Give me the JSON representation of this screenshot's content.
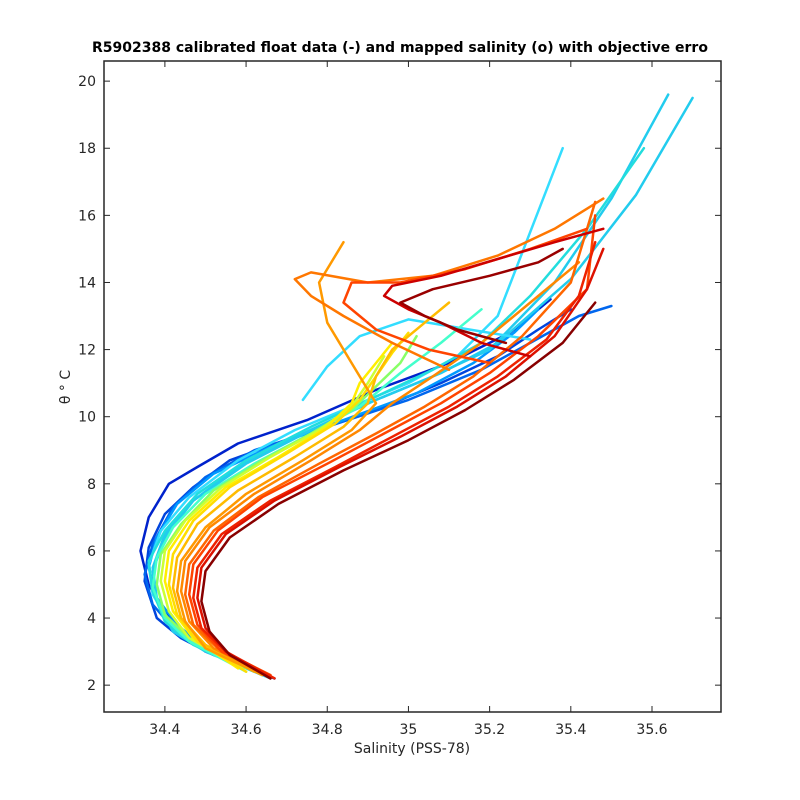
{
  "chart_data": {
    "type": "line",
    "title": "R5902388 calibrated float data (-) and mapped salinity (o) with objective erro",
    "xlabel": "Salinity (PSS-78)",
    "ylabel": "θ ° C",
    "xlim": [
      34.25,
      35.77
    ],
    "ylim": [
      1.2,
      20.6
    ],
    "x_ticks": [
      34.4,
      34.6,
      34.8,
      35.0,
      35.2,
      35.4,
      35.6
    ],
    "x_tick_labels": [
      "34.4",
      "34.6",
      "34.8",
      "35",
      "35.2",
      "35.4",
      "35.6"
    ],
    "y_ticks": [
      2,
      4,
      6,
      8,
      10,
      12,
      14,
      16,
      18,
      20
    ],
    "y_tick_labels": [
      "2",
      "4",
      "6",
      "8",
      "10",
      "12",
      "14",
      "16",
      "18",
      "20"
    ],
    "grid": false,
    "legend": "none",
    "series": [
      {
        "color": "#0022cc",
        "x": [
          34.67,
          34.5,
          34.45,
          34.4,
          34.36,
          34.34,
          34.36,
          34.41,
          34.48,
          34.58,
          34.75,
          34.92,
          35.1,
          35.25,
          35.35
        ],
        "y": [
          2.2,
          3.0,
          3.5,
          4.2,
          5.0,
          6.0,
          7.0,
          8.0,
          8.5,
          9.2,
          9.9,
          10.8,
          11.6,
          12.5,
          13.5
        ]
      },
      {
        "color": "#0044dd",
        "x": [
          34.66,
          34.52,
          34.44,
          34.38,
          34.35,
          34.36,
          34.4,
          34.47,
          34.56,
          34.72,
          34.9,
          35.08,
          35.22,
          35.32,
          35.4
        ],
        "y": [
          2.25,
          2.9,
          3.4,
          4.0,
          5.1,
          6.1,
          7.1,
          7.9,
          8.7,
          9.4,
          10.1,
          11.0,
          11.8,
          12.6,
          13.2
        ]
      },
      {
        "color": "#0066ee",
        "x": [
          34.65,
          34.48,
          34.42,
          34.37,
          34.35,
          34.37,
          34.42,
          34.5,
          34.62,
          34.8,
          35.0,
          35.18,
          35.3,
          35.42,
          35.5
        ],
        "y": [
          2.3,
          3.2,
          3.7,
          4.4,
          5.3,
          6.2,
          7.3,
          8.2,
          9.0,
          9.7,
          10.5,
          11.4,
          12.2,
          13.0,
          13.3
        ]
      },
      {
        "color": "#0099ff",
        "x": [
          34.64,
          34.5,
          34.43,
          34.38,
          34.36,
          34.38,
          34.43,
          34.52,
          34.66,
          34.84,
          35.02,
          35.16,
          35.26,
          35.32
        ],
        "y": [
          2.3,
          3.1,
          3.8,
          4.6,
          5.5,
          6.4,
          7.4,
          8.3,
          9.1,
          9.9,
          10.7,
          11.6,
          12.5,
          13.2
        ]
      },
      {
        "color": "#22ccee",
        "x": [
          34.66,
          34.5,
          34.42,
          34.38,
          34.37,
          34.4,
          34.47,
          34.58,
          34.74,
          34.9,
          35.06,
          35.2,
          35.36,
          35.5,
          35.64
        ],
        "y": [
          2.2,
          3.0,
          3.6,
          4.5,
          5.4,
          6.4,
          7.5,
          8.5,
          9.5,
          10.4,
          11.2,
          12.0,
          14.0,
          16.5,
          19.6
        ]
      },
      {
        "color": "#22ccee",
        "x": [
          34.65,
          34.5,
          34.42,
          34.38,
          34.37,
          34.4,
          34.47,
          34.6,
          34.76,
          34.92,
          35.08,
          35.22,
          35.4,
          35.56,
          35.7
        ],
        "y": [
          2.3,
          3.1,
          3.7,
          4.6,
          5.5,
          6.5,
          7.5,
          8.6,
          9.6,
          10.5,
          11.3,
          12.2,
          14.1,
          16.6,
          19.5
        ]
      },
      {
        "color": "#33ddff",
        "x": [
          34.63,
          34.48,
          34.41,
          34.37,
          34.36,
          34.39,
          34.46,
          34.58,
          34.72,
          34.86,
          35.0,
          35.12,
          35.22,
          35.3,
          35.38
        ],
        "y": [
          2.4,
          3.2,
          3.9,
          4.7,
          5.6,
          6.6,
          7.6,
          8.7,
          9.6,
          10.3,
          11.0,
          11.8,
          13.0,
          15.5,
          18.0
        ]
      },
      {
        "color": "#33ddff",
        "x": [
          35.3,
          35.15,
          35.0,
          34.88,
          34.8,
          34.74
        ],
        "y": [
          12.3,
          12.6,
          12.9,
          12.4,
          11.5,
          10.5
        ]
      },
      {
        "color": "#22dddd",
        "x": [
          34.62,
          34.47,
          34.4,
          34.37,
          34.36,
          34.4,
          34.48,
          34.6,
          34.76,
          34.92,
          35.06,
          35.18,
          35.3,
          35.44,
          35.58
        ],
        "y": [
          2.4,
          3.2,
          3.9,
          4.8,
          5.7,
          6.6,
          7.7,
          8.7,
          9.7,
          10.6,
          11.4,
          12.2,
          13.6,
          15.6,
          18.0
        ]
      },
      {
        "color": "#44ffcc",
        "x": [
          34.6,
          34.46,
          34.4,
          34.37,
          34.38,
          34.42,
          34.5,
          34.62,
          34.76,
          34.88,
          34.98,
          35.08,
          35.18
        ],
        "y": [
          2.4,
          3.3,
          4.0,
          4.9,
          5.8,
          6.7,
          7.7,
          8.6,
          9.5,
          10.3,
          11.3,
          12.2,
          13.2
        ]
      },
      {
        "color": "#88ff66",
        "x": [
          34.6,
          34.46,
          34.4,
          34.38,
          34.39,
          34.44,
          34.52,
          34.64,
          34.76,
          34.86,
          34.92,
          34.98,
          35.02
        ],
        "y": [
          2.5,
          3.4,
          4.1,
          5.0,
          5.9,
          6.8,
          7.8,
          8.7,
          9.5,
          10.2,
          10.9,
          11.6,
          12.4
        ]
      },
      {
        "color": "#ccff33",
        "x": [
          34.59,
          34.46,
          34.41,
          34.39,
          34.4,
          34.45,
          34.54,
          34.66,
          34.78,
          34.86,
          34.9,
          34.94
        ],
        "y": [
          2.5,
          3.4,
          4.2,
          5.1,
          6.0,
          6.9,
          7.9,
          8.8,
          9.6,
          10.3,
          11.0,
          11.8
        ]
      },
      {
        "color": "#ffee00",
        "x": [
          34.58,
          34.47,
          34.42,
          34.4,
          34.41,
          34.46,
          34.55,
          34.68,
          34.8,
          34.86,
          34.88,
          34.92,
          34.96
        ],
        "y": [
          2.5,
          3.4,
          4.2,
          5.1,
          6.0,
          6.9,
          7.9,
          8.8,
          9.7,
          10.4,
          11.0,
          11.6,
          12.2
        ]
      },
      {
        "color": "#ffdd00",
        "x": [
          34.6,
          34.48,
          34.43,
          34.41,
          34.42,
          34.47,
          34.56,
          34.7,
          34.82,
          34.88,
          34.92,
          34.96,
          35.0
        ],
        "y": [
          2.4,
          3.3,
          4.1,
          5.0,
          5.9,
          6.9,
          7.9,
          8.9,
          9.8,
          10.5,
          11.2,
          11.9,
          12.5
        ]
      },
      {
        "color": "#ffbb00",
        "x": [
          34.62,
          34.5,
          34.44,
          34.42,
          34.43,
          34.48,
          34.58,
          34.72,
          34.84,
          34.9,
          34.92,
          34.96,
          35.04,
          35.1
        ],
        "y": [
          2.4,
          3.2,
          4.0,
          4.9,
          5.8,
          6.8,
          7.8,
          8.8,
          9.7,
          10.4,
          11.2,
          12.0,
          12.8,
          13.4
        ]
      },
      {
        "color": "#ff9900",
        "x": [
          34.64,
          34.5,
          34.45,
          34.43,
          34.44,
          34.5,
          34.6,
          34.74,
          34.86,
          34.92,
          34.86,
          34.8,
          34.78,
          34.84
        ],
        "y": [
          2.3,
          3.1,
          3.9,
          4.8,
          5.7,
          6.7,
          7.7,
          8.7,
          9.6,
          10.4,
          11.6,
          12.8,
          14.0,
          15.2
        ]
      },
      {
        "color": "#ff8800",
        "x": [
          34.65,
          34.52,
          34.46,
          34.44,
          34.45,
          34.51,
          34.62,
          34.76,
          34.88,
          34.96,
          35.06,
          35.18,
          35.3,
          35.42
        ],
        "y": [
          2.3,
          3.1,
          3.9,
          4.8,
          5.7,
          6.7,
          7.7,
          8.7,
          9.6,
          10.4,
          11.2,
          12.2,
          13.4,
          14.6
        ]
      },
      {
        "color": "#ff7700",
        "x": [
          35.1,
          34.96,
          34.84,
          34.76,
          34.72,
          34.76,
          34.9,
          35.06,
          35.22,
          35.36,
          35.48
        ],
        "y": [
          11.4,
          12.2,
          13.0,
          13.6,
          14.1,
          14.3,
          14.0,
          14.2,
          14.8,
          15.6,
          16.5
        ]
      },
      {
        "color": "#ff6600",
        "x": [
          34.66,
          34.53,
          34.47,
          34.45,
          34.46,
          34.52,
          34.63,
          34.78,
          34.92,
          35.04,
          35.16,
          35.28,
          35.4,
          35.46
        ],
        "y": [
          2.3,
          3.1,
          3.8,
          4.7,
          5.6,
          6.6,
          7.6,
          8.6,
          9.5,
          10.3,
          11.2,
          12.4,
          14.0,
          16.4
        ]
      },
      {
        "color": "#ff4400",
        "x": [
          34.66,
          34.54,
          34.48,
          34.46,
          34.47,
          34.53,
          34.64,
          34.8,
          34.94,
          35.08,
          35.2,
          35.32,
          35.44,
          35.46
        ],
        "y": [
          2.3,
          3.0,
          3.8,
          4.7,
          5.6,
          6.6,
          7.6,
          8.6,
          9.5,
          10.4,
          11.3,
          12.4,
          13.8,
          16.0
        ]
      },
      {
        "color": "#ff4400",
        "x": [
          35.2,
          35.05,
          34.92,
          34.84,
          34.86,
          34.98,
          35.14,
          35.3,
          35.44
        ],
        "y": [
          11.6,
          12.0,
          12.6,
          13.4,
          14.0,
          14.0,
          14.4,
          15.0,
          15.6
        ]
      },
      {
        "color": "#ee2200",
        "x": [
          34.67,
          34.55,
          34.49,
          34.47,
          34.48,
          34.54,
          34.66,
          34.82,
          34.96,
          35.1,
          35.22,
          35.34,
          35.42,
          35.46
        ],
        "y": [
          2.2,
          3.0,
          3.7,
          4.6,
          5.5,
          6.5,
          7.5,
          8.5,
          9.4,
          10.3,
          11.2,
          12.3,
          13.6,
          15.2
        ]
      },
      {
        "color": "#dd1100",
        "x": [
          34.66,
          34.55,
          34.5,
          34.48,
          34.49,
          34.55,
          34.67,
          34.83,
          34.98,
          35.12,
          35.24,
          35.36,
          35.44,
          35.48
        ],
        "y": [
          2.2,
          3.0,
          3.7,
          4.6,
          5.5,
          6.5,
          7.5,
          8.5,
          9.4,
          10.3,
          11.2,
          12.4,
          13.8,
          15.0
        ]
      },
      {
        "color": "#cc0000",
        "x": [
          35.3,
          35.18,
          35.08,
          35.0,
          34.94,
          34.96,
          35.08,
          35.22,
          35.36,
          35.48
        ],
        "y": [
          11.8,
          12.2,
          12.8,
          13.2,
          13.6,
          13.9,
          14.2,
          14.7,
          15.2,
          15.6
        ]
      },
      {
        "color": "#990000",
        "x": [
          35.24,
          35.12,
          35.04,
          34.98,
          35.06,
          35.2,
          35.32,
          35.38
        ],
        "y": [
          12.2,
          12.6,
          13.0,
          13.4,
          13.8,
          14.2,
          14.6,
          15.0
        ]
      },
      {
        "color": "#880000",
        "x": [
          34.66,
          34.56,
          34.51,
          34.49,
          34.5,
          34.56,
          34.68,
          34.84,
          35.0,
          35.14,
          35.26,
          35.38,
          35.46
        ],
        "y": [
          2.2,
          2.9,
          3.6,
          4.5,
          5.4,
          6.4,
          7.4,
          8.4,
          9.3,
          10.2,
          11.1,
          12.2,
          13.4
        ]
      }
    ]
  }
}
